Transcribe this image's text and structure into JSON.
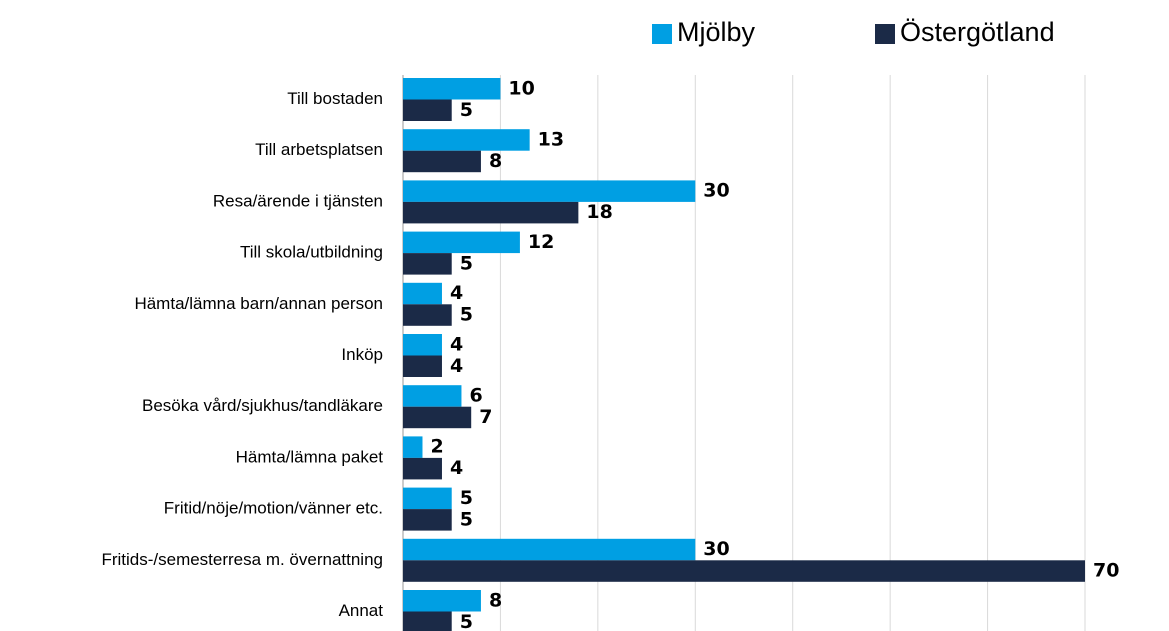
{
  "chart_data": {
    "type": "hbar",
    "categories": [
      "Till bostaden",
      "Till arbetsplatsen",
      "Resa/ärende i tjänsten",
      "Till skola/utbildning",
      "Hämta/lämna barn/annan person",
      "Inköp",
      "Besöka vård/sjukhus/tandläkare",
      "Hämta/lämna paket",
      "Fritid/nöje/motion/vänner etc.",
      "Fritids-/semesterresa m. övernattning",
      "Annat"
    ],
    "series": [
      {
        "name": "Mjölby",
        "color": "#009fe3",
        "values": [
          10,
          13,
          30,
          12,
          4,
          4,
          6,
          2,
          5,
          30,
          8
        ]
      },
      {
        "name": "Östergötland",
        "color": "#1b2a47",
        "values": [
          5,
          8,
          18,
          5,
          5,
          4,
          7,
          4,
          5,
          70,
          5
        ]
      }
    ],
    "xlim": [
      0,
      70
    ],
    "xticks": [
      0,
      10,
      20,
      30,
      40,
      50,
      60,
      70
    ],
    "grid": true,
    "legend": "top-right"
  }
}
